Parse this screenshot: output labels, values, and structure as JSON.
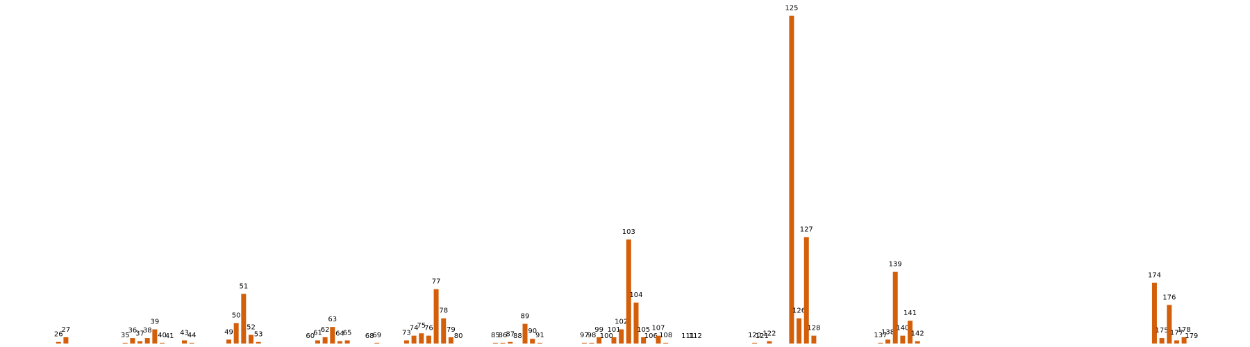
{
  "chart_data": {
    "type": "bar",
    "color": "#d45f0a",
    "x": [
      26,
      27,
      35,
      36,
      37,
      38,
      39,
      40,
      41,
      43,
      44,
      49,
      50,
      51,
      52,
      53,
      60,
      61,
      62,
      63,
      64,
      65,
      68,
      69,
      73,
      74,
      75,
      76,
      77,
      78,
      79,
      80,
      85,
      86,
      87,
      88,
      89,
      90,
      91,
      97,
      98,
      99,
      100,
      101,
      102,
      103,
      104,
      105,
      106,
      107,
      108,
      111,
      112,
      120,
      121,
      122,
      125,
      126,
      127,
      128,
      137,
      138,
      139,
      140,
      141,
      142,
      174,
      175,
      176,
      177,
      178,
      179
    ],
    "values": [
      2,
      8,
      1,
      7,
      3,
      7,
      18,
      1,
      0,
      4,
      1,
      5,
      26,
      63,
      11,
      2,
      0,
      4,
      8,
      21,
      3,
      4,
      0,
      1,
      4,
      10,
      13,
      10,
      69,
      32,
      8,
      0,
      1,
      1,
      2,
      0,
      25,
      6,
      1,
      1,
      1,
      8,
      0,
      8,
      18,
      132,
      52,
      8,
      0,
      10,
      1,
      0,
      0,
      1,
      0,
      3,
      416,
      32,
      135,
      10,
      1,
      5,
      91,
      10,
      29,
      3,
      77,
      7,
      49,
      4,
      8,
      0
    ],
    "xlim": [
      18.1,
      186.9
    ],
    "ylim": [
      0,
      436
    ]
  }
}
